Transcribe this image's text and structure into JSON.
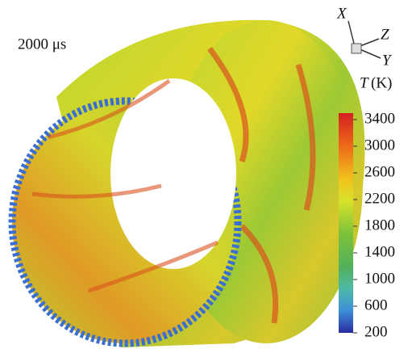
{
  "time_label": "2000 μs",
  "axes": {
    "x": "X",
    "y": "Y",
    "z": "Z"
  },
  "colorbar": {
    "symbol": "T",
    "unit": "(K)",
    "ticks": [
      3400,
      3000,
      2600,
      2200,
      1800,
      1400,
      1000,
      600,
      200
    ]
  }
}
